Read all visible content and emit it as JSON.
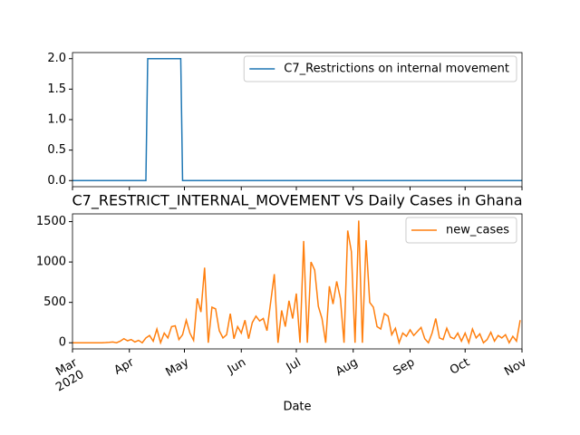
{
  "chart_data": [
    {
      "type": "line",
      "x": [
        "2020-03-01",
        "2020-04-10",
        "2020-04-11",
        "2020-04-29",
        "2020-04-30",
        "2020-11-01"
      ],
      "series": [
        {
          "name": "C7_Restrictions on internal movement",
          "color": "#1f77b4",
          "values": [
            0,
            0,
            2,
            2,
            0,
            0
          ]
        }
      ],
      "xlim": [
        "2020-03-01",
        "2020-11-01"
      ],
      "ylim": [
        -0.1,
        2.1
      ],
      "yticks": [
        {
          "value": 0,
          "label": "0.0"
        },
        {
          "value": 0.5,
          "label": "0.5"
        },
        {
          "value": 1,
          "label": "1.0"
        },
        {
          "value": 1.5,
          "label": "1.5"
        },
        {
          "value": 2,
          "label": "2.0"
        }
      ],
      "legend": "upper right"
    },
    {
      "type": "line",
      "title": "C7_RESTRICT_INTERNAL_MOVEMENT VS Daily Cases in Ghana",
      "xlabel": "Date",
      "x": [
        "2020-03-01",
        "2020-03-03",
        "2020-03-05",
        "2020-03-07",
        "2020-03-09",
        "2020-03-11",
        "2020-03-13",
        "2020-03-15",
        "2020-03-17",
        "2020-03-19",
        "2020-03-21",
        "2020-03-23",
        "2020-03-25",
        "2020-03-27",
        "2020-03-29",
        "2020-03-31",
        "2020-04-02",
        "2020-04-04",
        "2020-04-06",
        "2020-04-08",
        "2020-04-10",
        "2020-04-12",
        "2020-04-14",
        "2020-04-16",
        "2020-04-18",
        "2020-04-20",
        "2020-04-22",
        "2020-04-24",
        "2020-04-26",
        "2020-04-28",
        "2020-04-30",
        "2020-05-02",
        "2020-05-04",
        "2020-05-06",
        "2020-05-08",
        "2020-05-10",
        "2020-05-12",
        "2020-05-14",
        "2020-05-16",
        "2020-05-18",
        "2020-05-20",
        "2020-05-22",
        "2020-05-24",
        "2020-05-26",
        "2020-05-28",
        "2020-05-30",
        "2020-06-01",
        "2020-06-03",
        "2020-06-05",
        "2020-06-07",
        "2020-06-09",
        "2020-06-11",
        "2020-06-13",
        "2020-06-15",
        "2020-06-17",
        "2020-06-19",
        "2020-06-21",
        "2020-06-23",
        "2020-06-25",
        "2020-06-27",
        "2020-06-29",
        "2020-07-01",
        "2020-07-03",
        "2020-07-05",
        "2020-07-07",
        "2020-07-09",
        "2020-07-11",
        "2020-07-13",
        "2020-07-15",
        "2020-07-17",
        "2020-07-19",
        "2020-07-21",
        "2020-07-23",
        "2020-07-25",
        "2020-07-27",
        "2020-07-29",
        "2020-07-31",
        "2020-08-02",
        "2020-08-04",
        "2020-08-06",
        "2020-08-08",
        "2020-08-10",
        "2020-08-12",
        "2020-08-14",
        "2020-08-16",
        "2020-08-18",
        "2020-08-20",
        "2020-08-22",
        "2020-08-24",
        "2020-08-26",
        "2020-08-28",
        "2020-08-30",
        "2020-09-01",
        "2020-09-03",
        "2020-09-05",
        "2020-09-07",
        "2020-09-09",
        "2020-09-11",
        "2020-09-13",
        "2020-09-15",
        "2020-09-17",
        "2020-09-19",
        "2020-09-21",
        "2020-09-23",
        "2020-09-25",
        "2020-09-27",
        "2020-09-29",
        "2020-10-01",
        "2020-10-03",
        "2020-10-05",
        "2020-10-07",
        "2020-10-09",
        "2020-10-11",
        "2020-10-13",
        "2020-10-15",
        "2020-10-17",
        "2020-10-19",
        "2020-10-21",
        "2020-10-23",
        "2020-10-25",
        "2020-10-27",
        "2020-10-29",
        "2020-10-31"
      ],
      "series": [
        {
          "name": "new_cases",
          "color": "#ff7f0e",
          "values": [
            0,
            0,
            0,
            0,
            0,
            0,
            0,
            0,
            0,
            2,
            5,
            10,
            0,
            20,
            50,
            25,
            40,
            10,
            30,
            0,
            60,
            90,
            20,
            170,
            0,
            120,
            60,
            200,
            210,
            40,
            100,
            280,
            120,
            30,
            550,
            380,
            930,
            0,
            440,
            420,
            150,
            60,
            100,
            360,
            50,
            200,
            120,
            280,
            50,
            250,
            330,
            270,
            300,
            150,
            500,
            850,
            0,
            400,
            200,
            520,
            300,
            610,
            0,
            1260,
            0,
            1000,
            900,
            450,
            300,
            0,
            700,
            480,
            760,
            550,
            0,
            1390,
            1130,
            0,
            1513,
            0,
            1270,
            500,
            440,
            200,
            170,
            360,
            330,
            100,
            180,
            0,
            120,
            80,
            160,
            90,
            140,
            190,
            50,
            0,
            120,
            300,
            60,
            40,
            180,
            70,
            50,
            120,
            20,
            120,
            0,
            170,
            60,
            110,
            0,
            40,
            130,
            20,
            90,
            60,
            100,
            0,
            80,
            20,
            280
          ]
        }
      ],
      "xlim": [
        "2020-03-01",
        "2020-11-01"
      ],
      "xticks": [
        {
          "value": "2020-03-01",
          "label": "Mar\n2020"
        },
        {
          "value": "2020-04-01",
          "label": "Apr"
        },
        {
          "value": "2020-05-01",
          "label": "May"
        },
        {
          "value": "2020-06-01",
          "label": "Jun"
        },
        {
          "value": "2020-07-01",
          "label": "Jul"
        },
        {
          "value": "2020-08-01",
          "label": "Aug"
        },
        {
          "value": "2020-09-01",
          "label": "Sep"
        },
        {
          "value": "2020-10-01",
          "label": "Oct"
        },
        {
          "value": "2020-11-01",
          "label": "Nov"
        }
      ],
      "ylim": [
        -76,
        1596
      ],
      "yticks": [
        0,
        500,
        1000,
        1500
      ],
      "legend": "upper right"
    }
  ]
}
